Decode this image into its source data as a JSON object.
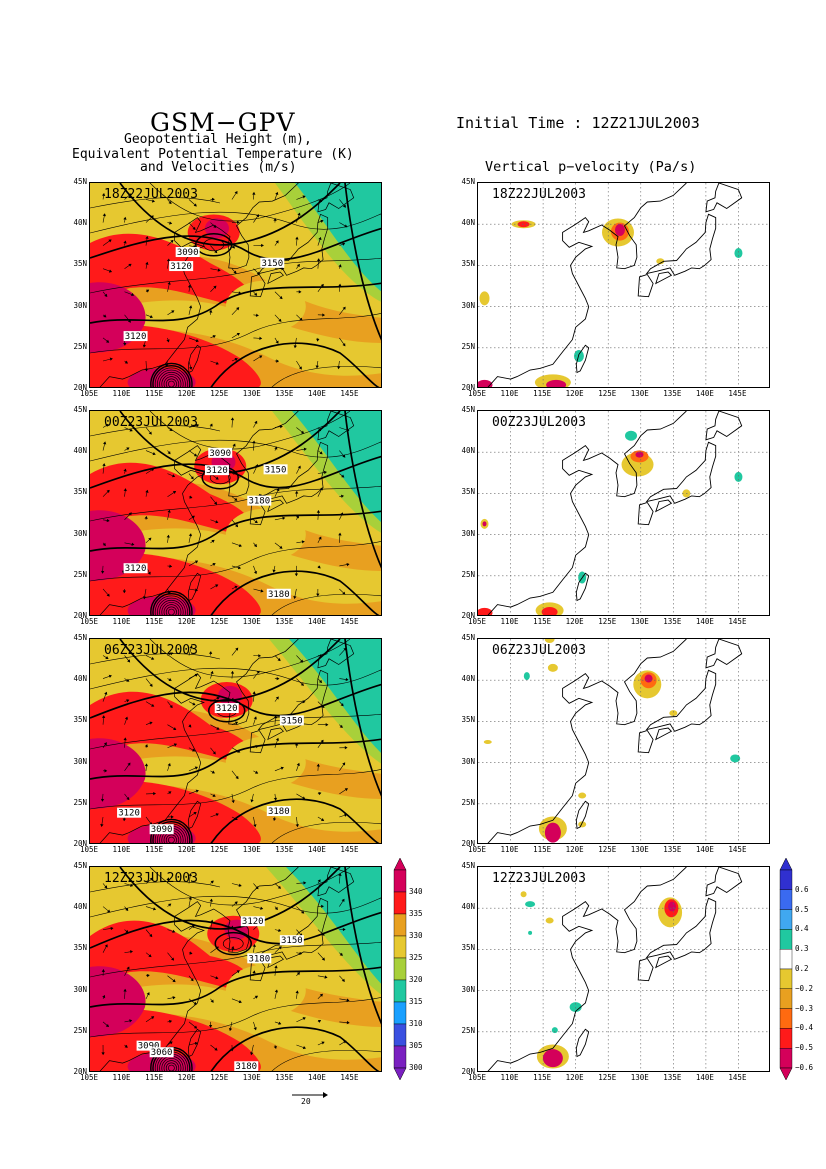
{
  "header": {
    "model": "GSM−GPV",
    "left_title_lines": [
      "Geopotential Height (m),",
      "Equivalent Potential Temperature (K)",
      "and Velocities (m/s)"
    ],
    "initial_time": "Initial Time : 12Z21JUL2003",
    "right_title": "Vertical p−velocity (Pa/s)"
  },
  "axes": {
    "lat_labels": [
      "45N",
      "40N",
      "35N",
      "30N",
      "25N",
      "20N"
    ],
    "lon_labels": [
      "105E",
      "110E",
      "115E",
      "120E",
      "125E",
      "130E",
      "135E",
      "140E",
      "145E"
    ]
  },
  "panels": [
    {
      "time": "18Z22JUL2003",
      "contour_labels": [
        "3090",
        "3120",
        "3150",
        "3120"
      ]
    },
    {
      "time": "00Z23JUL2003",
      "contour_labels": [
        "3090",
        "3120",
        "3150",
        "3180",
        "3120",
        "3180"
      ]
    },
    {
      "time": "06Z23JUL2003",
      "contour_labels": [
        "3120",
        "3150",
        "3120",
        "3180",
        "3090"
      ]
    },
    {
      "time": "12Z23JUL2003",
      "contour_labels": [
        "3120",
        "3150",
        "3180",
        "3090",
        "3060",
        "3180"
      ]
    }
  ],
  "theta_colorbar": {
    "labels": [
      "340",
      "335",
      "330",
      "325",
      "320",
      "315",
      "310",
      "305",
      "300"
    ],
    "colors": [
      "#d4005a",
      "#ff1a1a",
      "#e8a020",
      "#e6c830",
      "#a8d03a",
      "#20c8a0",
      "#1aa0ff",
      "#3a50e0",
      "#7a20c0"
    ]
  },
  "omega_colorbar": {
    "labels": [
      "0.6",
      "0.5",
      "0.4",
      "0.3",
      "0.2",
      "−0.2",
      "−0.3",
      "−0.4",
      "−0.5",
      "−0.6"
    ],
    "colors": [
      "#3030d0",
      "#3a6af0",
      "#40a8f0",
      "#20c8a0",
      "#ffffff",
      "#e6c830",
      "#e8a020",
      "#ff6a10",
      "#ff1a1a",
      "#d4005a"
    ]
  },
  "wind_scale_label": "20"
}
